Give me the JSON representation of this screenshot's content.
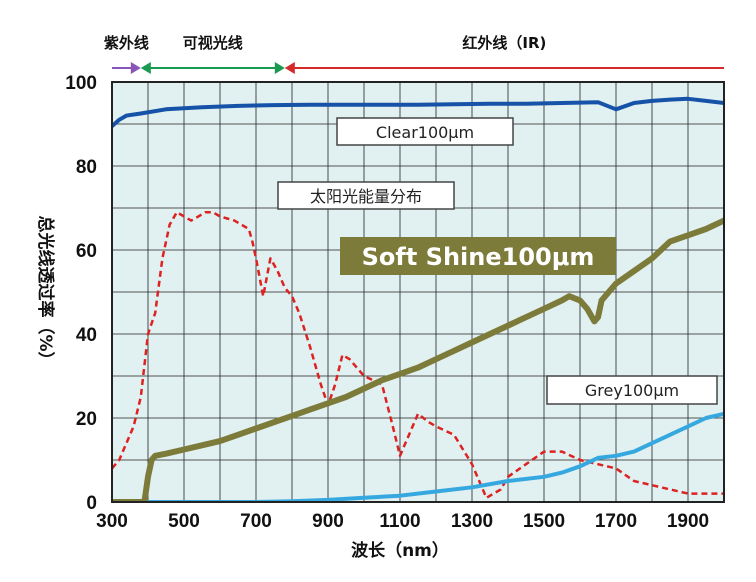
{
  "chart_data": {
    "type": "line",
    "xlabel": "波长（nm）",
    "ylabel": "总光线透过率（%）",
    "xlim": [
      300,
      2000
    ],
    "ylim": [
      0,
      100
    ],
    "x_ticks": [
      300,
      500,
      700,
      900,
      1100,
      1300,
      1500,
      1700,
      1900
    ],
    "x_tick_labels": [
      "300",
      "500",
      "700",
      "900",
      "1100",
      "1300",
      "1500",
      "1700",
      "1900"
    ],
    "y_ticks": [
      0,
      20,
      40,
      60,
      80,
      100
    ],
    "y_tick_labels": [
      "0",
      "20",
      "40",
      "60",
      "80",
      "100"
    ],
    "grid": true,
    "background": "#e1f0f0",
    "bands": [
      {
        "label": "紫外线",
        "from": 300,
        "to": 380,
        "color": "#8855bb"
      },
      {
        "label": "可视光线",
        "from": 380,
        "to": 780,
        "color": "#1a9950"
      },
      {
        "label": "红外线（IR)",
        "from": 780,
        "to": 2000,
        "color": "#d42a2a"
      }
    ],
    "series": [
      {
        "name": "Clear100μm",
        "color": "#1552a8",
        "style": "solid",
        "x": [
          300,
          320,
          340,
          380,
          450,
          550,
          650,
          750,
          850,
          950,
          1050,
          1150,
          1250,
          1350,
          1450,
          1550,
          1650,
          1700,
          1750,
          1800,
          1850,
          1900,
          1950,
          2000
        ],
        "y": [
          89.5,
          91,
          92,
          92.5,
          93.5,
          94,
          94.3,
          94.5,
          94.6,
          94.6,
          94.6,
          94.6,
          94.7,
          94.8,
          94.8,
          95,
          95.2,
          93.5,
          95,
          95.5,
          95.8,
          96,
          95.5,
          95
        ]
      },
      {
        "name": "太阳光能量分布",
        "color": "#dd2222",
        "style": "dashed",
        "x": [
          300,
          320,
          340,
          360,
          380,
          400,
          420,
          440,
          460,
          480,
          500,
          520,
          540,
          560,
          580,
          600,
          620,
          640,
          660,
          680,
          690,
          700,
          720,
          740,
          760,
          780,
          800,
          820,
          850,
          880,
          900,
          920,
          940,
          960,
          980,
          1000,
          1050,
          1080,
          1100,
          1130,
          1150,
          1180,
          1200,
          1250,
          1300,
          1340,
          1380,
          1400,
          1450,
          1500,
          1550,
          1600,
          1650,
          1700,
          1750,
          1800,
          1850,
          1900,
          1950,
          2000
        ],
        "y": [
          8,
          10,
          14,
          18,
          25,
          40,
          45,
          58,
          66,
          69,
          68,
          67,
          68,
          69,
          69,
          68,
          67.5,
          67,
          66,
          65,
          62,
          58,
          49,
          58,
          55,
          51,
          49,
          45,
          37,
          28,
          23,
          28,
          35,
          34,
          32,
          30,
          28,
          18,
          11,
          17,
          21,
          19,
          18,
          16,
          9,
          1,
          3,
          6,
          9,
          12,
          12,
          10,
          9,
          8,
          5,
          4,
          3,
          2,
          2,
          2
        ]
      },
      {
        "name": "Soft Shine100μm",
        "color": "#7d7b3a",
        "style": "solid-thick",
        "x": [
          300,
          350,
          390,
          400,
          410,
          420,
          450,
          500,
          550,
          600,
          650,
          700,
          750,
          800,
          850,
          900,
          950,
          1000,
          1050,
          1100,
          1150,
          1200,
          1250,
          1300,
          1350,
          1400,
          1450,
          1500,
          1550,
          1570,
          1600,
          1620,
          1640,
          1650,
          1660,
          1700,
          1750,
          1800,
          1850,
          1900,
          1950,
          2000
        ],
        "y": [
          0,
          0,
          0,
          6,
          10,
          11,
          11.5,
          12.5,
          13.5,
          14.5,
          16,
          17.5,
          19,
          20.5,
          22,
          23.5,
          25,
          27,
          29,
          30.5,
          32,
          34,
          36,
          38,
          40,
          42,
          44,
          46,
          48,
          49,
          48,
          46,
          43,
          44,
          48,
          52,
          55,
          58,
          62,
          63.5,
          65,
          67
        ]
      },
      {
        "name": "Grey100μm",
        "color": "#36a8e0",
        "style": "solid",
        "x": [
          300,
          400,
          500,
          600,
          700,
          800,
          900,
          1000,
          1100,
          1200,
          1300,
          1400,
          1500,
          1550,
          1600,
          1650,
          1700,
          1750,
          1800,
          1850,
          1900,
          1950,
          2000
        ],
        "y": [
          0,
          0,
          0,
          0,
          0,
          0.2,
          0.5,
          1,
          1.5,
          2.5,
          3.5,
          5,
          6,
          7,
          8.5,
          10.5,
          11,
          12,
          14,
          16,
          18,
          20,
          21
        ]
      }
    ],
    "annotations": [
      {
        "text": "Clear100μm",
        "series": 0,
        "style": "box"
      },
      {
        "text": "太阳光能量分布",
        "series": 1,
        "style": "box"
      },
      {
        "text": "Soft Shine100μm",
        "series": 2,
        "style": "filled"
      },
      {
        "text": "Grey100μm",
        "series": 3,
        "style": "box"
      }
    ]
  }
}
